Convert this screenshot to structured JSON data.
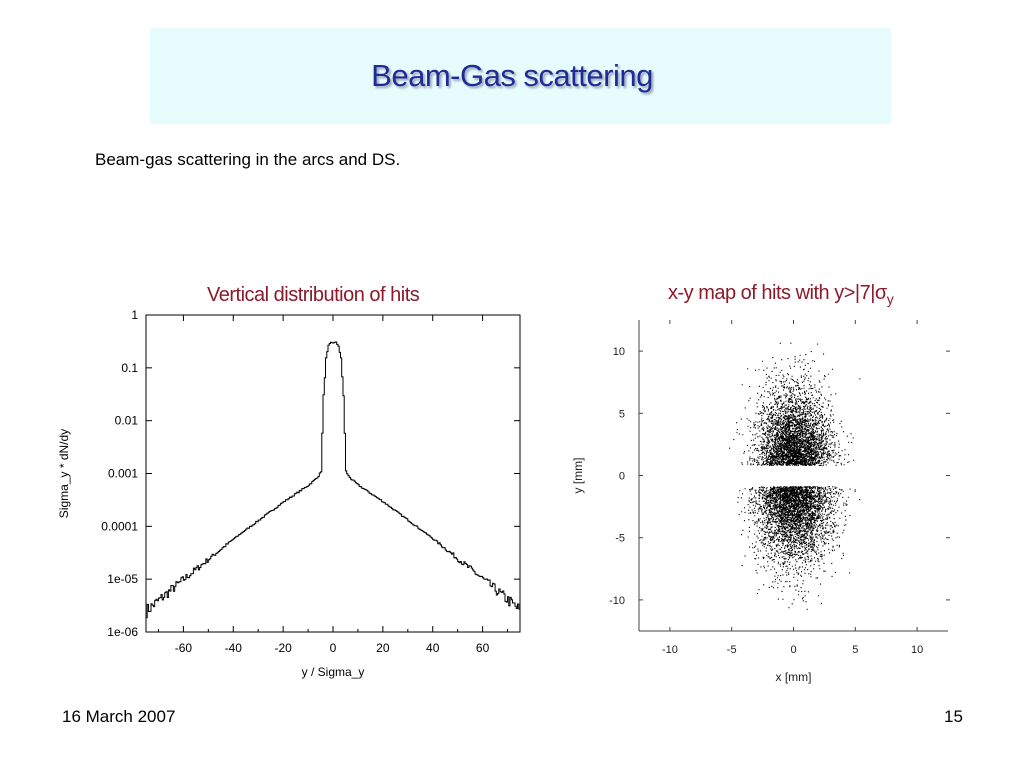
{
  "slide": {
    "title": "Beam-Gas scattering",
    "bullet": "Beam-gas scattering in the arcs and DS.",
    "footer_date": "16 March 2007",
    "page_number": "15"
  },
  "colors": {
    "title_text": "#1d2d94",
    "title_background": "#e6fcfd",
    "plot_title": "#8b1a2b"
  },
  "chart_data": [
    {
      "type": "line",
      "title": "Vertical distribution of hits",
      "xlabel": "y / Sigma_y",
      "ylabel": "Sigma_y * dN/dy",
      "xlim": [
        -75,
        75
      ],
      "ylim": [
        1e-06,
        1
      ],
      "yscale": "log",
      "xticks": [
        "-60",
        "-40",
        "-20",
        "0",
        "20",
        "40",
        "60"
      ],
      "yticks": [
        "1",
        "0.1",
        "0.01",
        "0.001",
        "0.0001",
        "1e-05",
        "1e-06"
      ],
      "x": [
        -75,
        -70,
        -60,
        -50,
        -40,
        -30,
        -20,
        -10,
        -7,
        -6,
        -5,
        -4,
        -3,
        -2,
        -1,
        0,
        1,
        2,
        3,
        4,
        5,
        6,
        7,
        10,
        20,
        30,
        40,
        50,
        60,
        70,
        75
      ],
      "y": [
        2.5e-06,
        4e-06,
        1e-05,
        2.4e-05,
        5.8e-05,
        0.00013,
        0.00029,
        0.0006,
        0.0008,
        0.0009,
        0.0011,
        0.03,
        0.15,
        0.26,
        0.3,
        0.3,
        0.3,
        0.26,
        0.15,
        0.03,
        0.0011,
        0.0009,
        0.0008,
        0.0006,
        0.00029,
        0.00013,
        5.8e-05,
        2.4e-05,
        1e-05,
        4e-06,
        2.5e-06
      ]
    },
    {
      "type": "scatter",
      "title": "x-y map of hits with  y>|7|σ",
      "title_subscript": "y",
      "xlabel": "x [mm]",
      "ylabel": "y [mm]",
      "xlim": [
        -12.5,
        12.5
      ],
      "ylim": [
        -12.5,
        12.5
      ],
      "xticks": [
        "-10",
        "-5",
        "0",
        "5",
        "10"
      ],
      "yticks": [
        "10",
        "5",
        "0",
        "-5",
        "-10"
      ],
      "description_of_points": "dense elliptical cloud of hits centred at (0,0), spread roughly |x|<5 mm and |y|<11 mm, with an empty horizontal band around y=0",
      "excluded_band_y": [
        -0.85,
        0.85
      ],
      "cloud_sigma_x": 1.5,
      "cloud_sigma_y": 3.2
    }
  ]
}
